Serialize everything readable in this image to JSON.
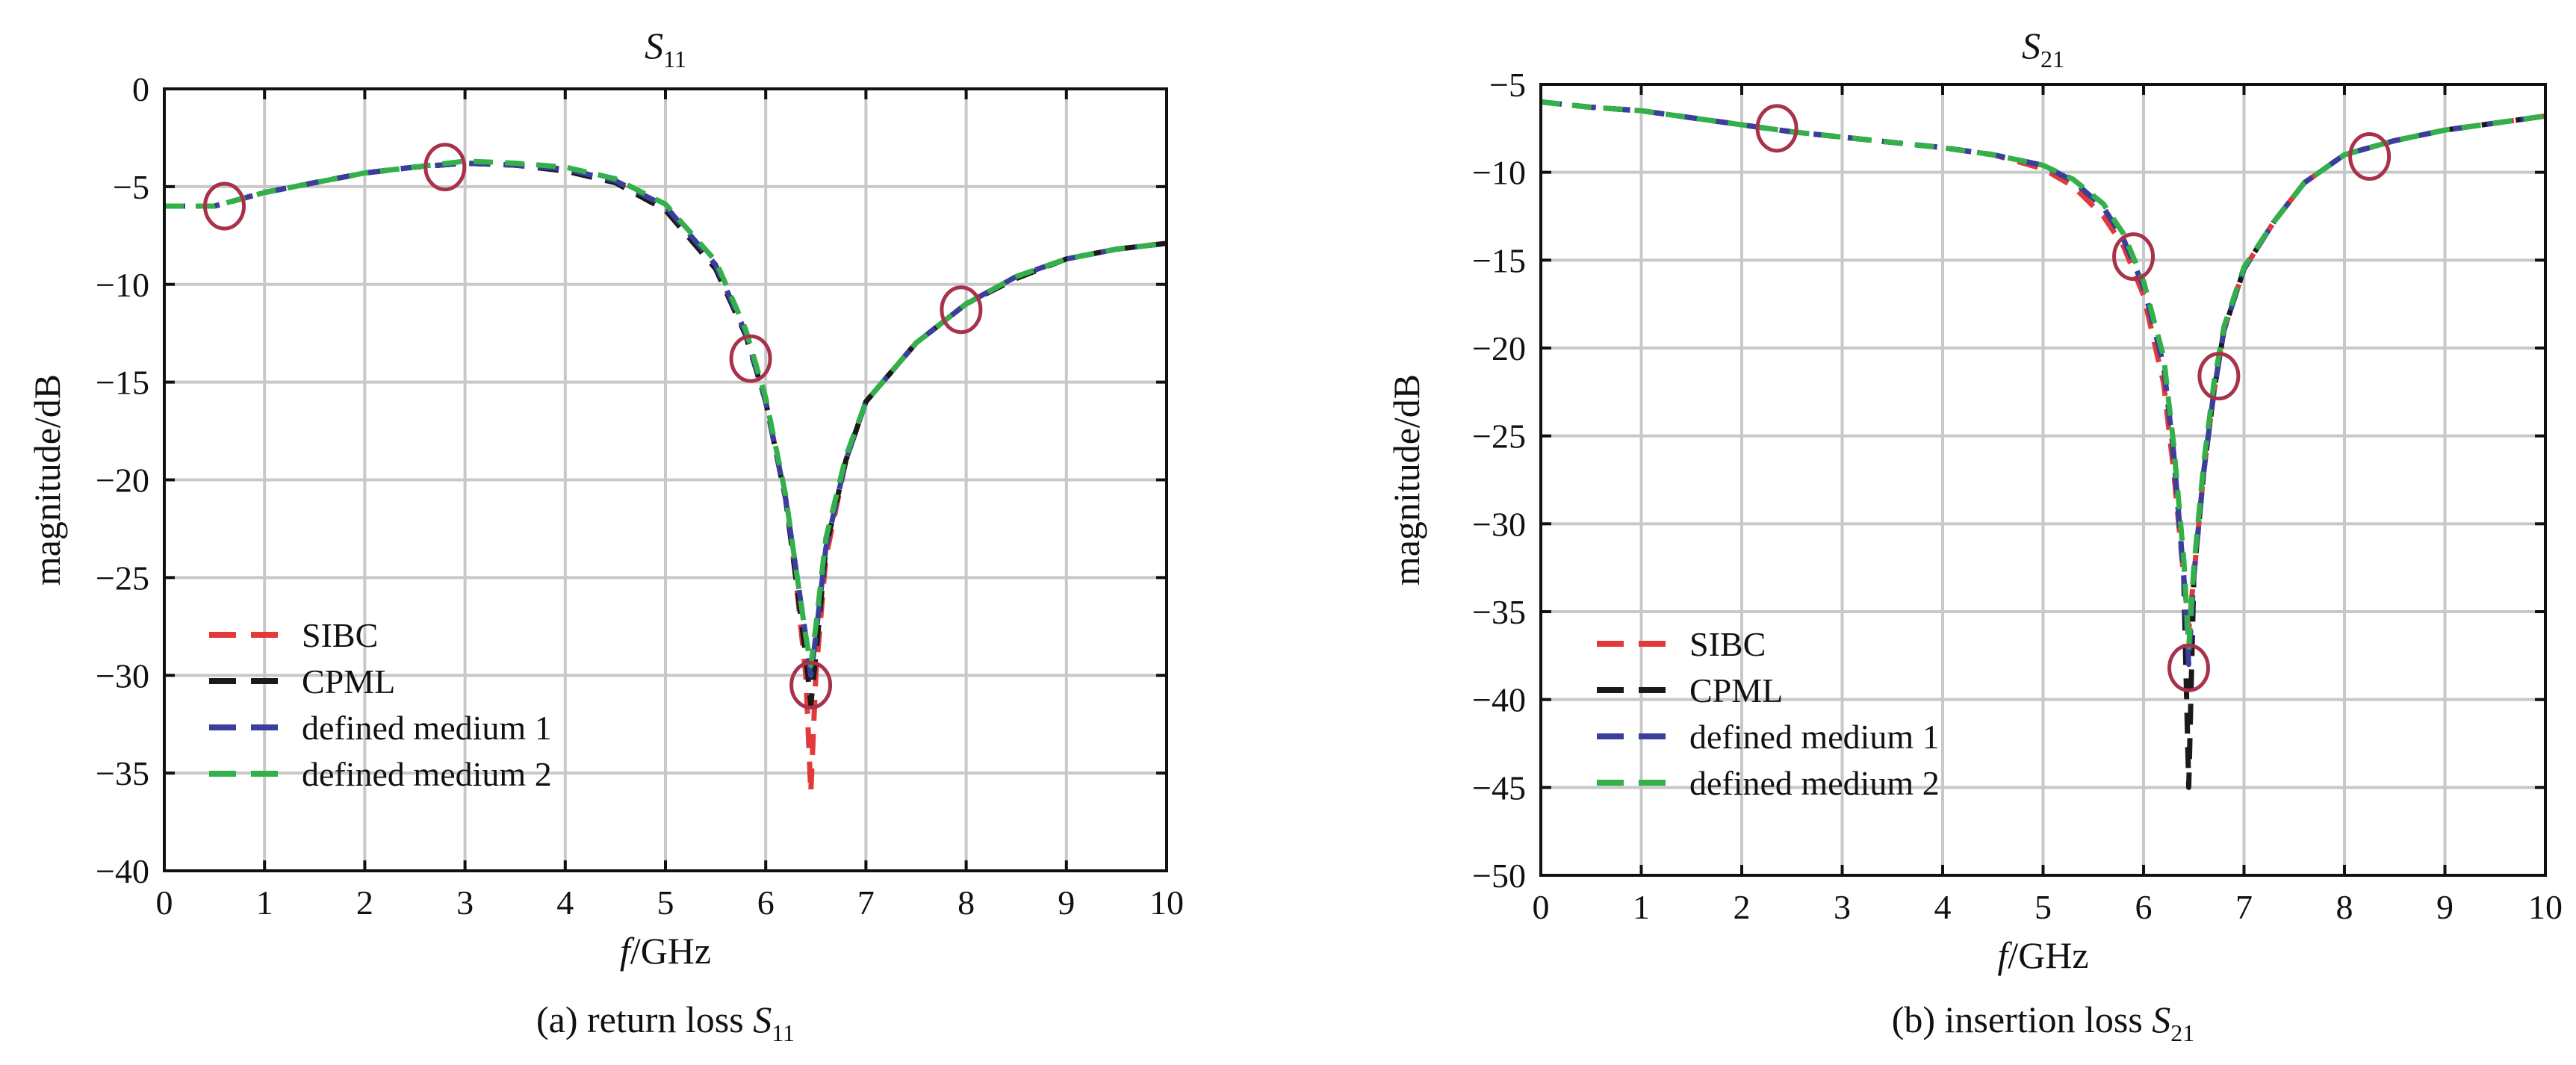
{
  "colors": {
    "SIBC": "#e23a3a",
    "CPML": "#1a1a1a",
    "defined medium 1": "#3a3f9e",
    "defined medium 2": "#33b04a",
    "marker": "#a8324a",
    "grid": "#c8c8c8",
    "axis": "#111111"
  },
  "chart_data": [
    {
      "type": "line",
      "title": "S",
      "title_sub": "11",
      "caption": "(a) return loss S",
      "caption_sub": "11",
      "xlabel_italic": "f",
      "xlabel_rest": "/GHz",
      "ylabel": "magnitude/dB",
      "xlim": [
        0,
        10
      ],
      "ylim": [
        -40,
        0
      ],
      "xticks": [
        0,
        1,
        2,
        3,
        4,
        5,
        6,
        7,
        8,
        9,
        10
      ],
      "yticks": [
        0,
        -5,
        -10,
        -15,
        -20,
        -25,
        -30,
        -35,
        -40
      ],
      "grid": true,
      "legend_position": "bottom-left",
      "series": [
        {
          "name": "SIBC",
          "x": [
            0,
            0.5,
            1,
            1.5,
            2,
            2.5,
            3,
            3.5,
            4,
            4.5,
            5,
            5.5,
            5.8,
            6,
            6.2,
            6.3,
            6.4,
            6.45,
            6.5,
            6.6,
            6.8,
            7,
            7.5,
            8,
            8.5,
            9,
            9.5,
            10
          ],
          "y": [
            -6,
            -6,
            -5.3,
            -4.8,
            -4.3,
            -4,
            -3.8,
            -3.9,
            -4.1,
            -4.7,
            -6,
            -9,
            -12.5,
            -16,
            -21,
            -25,
            -30,
            -36,
            -30,
            -24,
            -19,
            -16,
            -13,
            -11,
            -9.6,
            -8.7,
            -8.2,
            -7.9
          ]
        },
        {
          "name": "CPML",
          "x": [
            0,
            0.5,
            1,
            1.5,
            2,
            2.5,
            3,
            3.5,
            4,
            4.5,
            5,
            5.5,
            5.8,
            6,
            6.2,
            6.3,
            6.4,
            6.45,
            6.5,
            6.6,
            6.8,
            7,
            7.5,
            8,
            8.5,
            9,
            9.5,
            10
          ],
          "y": [
            -6,
            -6,
            -5.3,
            -4.8,
            -4.3,
            -4,
            -3.8,
            -3.9,
            -4.2,
            -4.8,
            -6.2,
            -9.2,
            -12.6,
            -16,
            -21,
            -25,
            -29,
            -31.5,
            -29,
            -23.5,
            -19,
            -16,
            -13,
            -11,
            -9.7,
            -8.7,
            -8.2,
            -7.9
          ]
        },
        {
          "name": "defined medium 1",
          "x": [
            0,
            0.5,
            1,
            1.5,
            2,
            2.5,
            3,
            3.5,
            4,
            4.5,
            5,
            5.5,
            5.8,
            6,
            6.2,
            6.3,
            6.4,
            6.45,
            6.5,
            6.6,
            6.8,
            7,
            7.5,
            8,
            8.5,
            9,
            9.5,
            10
          ],
          "y": [
            -6,
            -6,
            -5.3,
            -4.8,
            -4.3,
            -4,
            -3.8,
            -3.9,
            -4.1,
            -4.7,
            -6,
            -9,
            -12.5,
            -16,
            -21,
            -24.5,
            -28,
            -30,
            -28,
            -23.5,
            -19,
            -16,
            -13,
            -11,
            -9.6,
            -8.7,
            -8.2,
            -7.9
          ]
        },
        {
          "name": "defined medium 2",
          "x": [
            0,
            0.5,
            1,
            1.5,
            2,
            2.5,
            3,
            3.5,
            4,
            4.5,
            5,
            5.5,
            5.8,
            6,
            6.2,
            6.3,
            6.4,
            6.45,
            6.5,
            6.6,
            6.8,
            7,
            7.5,
            8,
            8.5,
            9,
            9.5,
            10
          ],
          "y": [
            -6,
            -6,
            -5.3,
            -4.8,
            -4.3,
            -4,
            -3.7,
            -3.8,
            -4,
            -4.6,
            -5.9,
            -8.8,
            -12.3,
            -15.8,
            -20.8,
            -24.5,
            -28,
            -29.5,
            -27.5,
            -23,
            -18.8,
            -16,
            -13,
            -11,
            -9.6,
            -8.7,
            -8.2,
            -7.9
          ]
        }
      ],
      "markers": [
        {
          "x": 0.6,
          "y": -6
        },
        {
          "x": 2.8,
          "y": -4
        },
        {
          "x": 5.85,
          "y": -13.8
        },
        {
          "x": 6.45,
          "y": -30.5
        },
        {
          "x": 7.95,
          "y": -11.3
        }
      ]
    },
    {
      "type": "line",
      "title": "S",
      "title_sub": "21",
      "caption": "(b) insertion loss S",
      "caption_sub": "21",
      "xlabel_italic": "f",
      "xlabel_rest": "/GHz",
      "ylabel": "magnitude/dB",
      "xlim": [
        0,
        10
      ],
      "ylim": [
        -50,
        -5
      ],
      "xticks": [
        0,
        1,
        2,
        3,
        4,
        5,
        6,
        7,
        8,
        9,
        10
      ],
      "yticks": [
        -5,
        -10,
        -15,
        -20,
        -25,
        -30,
        -35,
        -40,
        -45,
        -50
      ],
      "grid": true,
      "legend_position": "bottom-left",
      "series": [
        {
          "name": "SIBC",
          "x": [
            0,
            0.5,
            1,
            1.5,
            2,
            2.5,
            3,
            3.5,
            4,
            4.5,
            5,
            5.3,
            5.6,
            5.8,
            6,
            6.2,
            6.3,
            6.4,
            6.45,
            6.5,
            6.6,
            6.7,
            6.8,
            7,
            7.3,
            7.6,
            8,
            8.5,
            9,
            9.5,
            10
          ],
          "y": [
            -6,
            -6.3,
            -6.5,
            -6.9,
            -7.3,
            -7.7,
            -8,
            -8.3,
            -8.6,
            -9,
            -9.8,
            -10.8,
            -12.5,
            -14.2,
            -17,
            -22,
            -27,
            -33,
            -36,
            -33,
            -27,
            -22.5,
            -19,
            -15.5,
            -12.8,
            -10.6,
            -9,
            -8.2,
            -7.6,
            -7.2,
            -6.8
          ]
        },
        {
          "name": "CPML",
          "x": [
            0,
            0.5,
            1,
            1.5,
            2,
            2.5,
            3,
            3.5,
            4,
            4.5,
            5,
            5.3,
            5.6,
            5.8,
            6,
            6.2,
            6.3,
            6.4,
            6.45,
            6.5,
            6.6,
            6.7,
            6.8,
            7,
            7.3,
            7.6,
            8,
            8.5,
            9,
            9.5,
            10
          ],
          "y": [
            -6,
            -6.3,
            -6.5,
            -6.9,
            -7.3,
            -7.7,
            -8,
            -8.3,
            -8.6,
            -9,
            -9.6,
            -10.5,
            -12,
            -13.8,
            -16.5,
            -21,
            -26,
            -33,
            -45,
            -33,
            -27,
            -22.5,
            -19,
            -15.5,
            -12.8,
            -10.6,
            -9,
            -8.2,
            -7.6,
            -7.2,
            -6.8
          ]
        },
        {
          "name": "defined medium 1",
          "x": [
            0,
            0.5,
            1,
            1.5,
            2,
            2.5,
            3,
            3.5,
            4,
            4.5,
            5,
            5.3,
            5.6,
            5.8,
            6,
            6.2,
            6.3,
            6.4,
            6.45,
            6.5,
            6.6,
            6.7,
            6.8,
            7,
            7.3,
            7.6,
            8,
            8.5,
            9,
            9.5,
            10
          ],
          "y": [
            -6,
            -6.3,
            -6.5,
            -6.9,
            -7.3,
            -7.7,
            -8,
            -8.3,
            -8.6,
            -9,
            -9.6,
            -10.5,
            -12,
            -13.8,
            -16.5,
            -21,
            -26,
            -33,
            -38,
            -33,
            -27,
            -22.5,
            -19,
            -15.5,
            -12.8,
            -10.6,
            -9,
            -8.2,
            -7.6,
            -7.2,
            -6.8
          ]
        },
        {
          "name": "defined medium 2",
          "x": [
            0,
            0.5,
            1,
            1.5,
            2,
            2.5,
            3,
            3.5,
            4,
            4.5,
            5,
            5.3,
            5.6,
            5.8,
            6,
            6.2,
            6.3,
            6.4,
            6.45,
            6.5,
            6.6,
            6.7,
            6.8,
            7,
            7.3,
            7.6,
            8,
            8.5,
            9,
            9.5,
            10
          ],
          "y": [
            -6,
            -6.3,
            -6.5,
            -6.9,
            -7.3,
            -7.7,
            -8,
            -8.3,
            -8.6,
            -9,
            -9.6,
            -10.4,
            -11.8,
            -13.5,
            -16.2,
            -20.5,
            -25.5,
            -32,
            -37,
            -32.5,
            -26.5,
            -22,
            -18.8,
            -15.4,
            -12.8,
            -10.6,
            -9,
            -8.2,
            -7.6,
            -7.2,
            -6.8
          ]
        }
      ],
      "markers": [
        {
          "x": 2.35,
          "y": -7.5
        },
        {
          "x": 5.9,
          "y": -14.8
        },
        {
          "x": 6.75,
          "y": -21.6
        },
        {
          "x": 6.45,
          "y": -38.2
        },
        {
          "x": 8.25,
          "y": -9.1
        }
      ]
    }
  ]
}
